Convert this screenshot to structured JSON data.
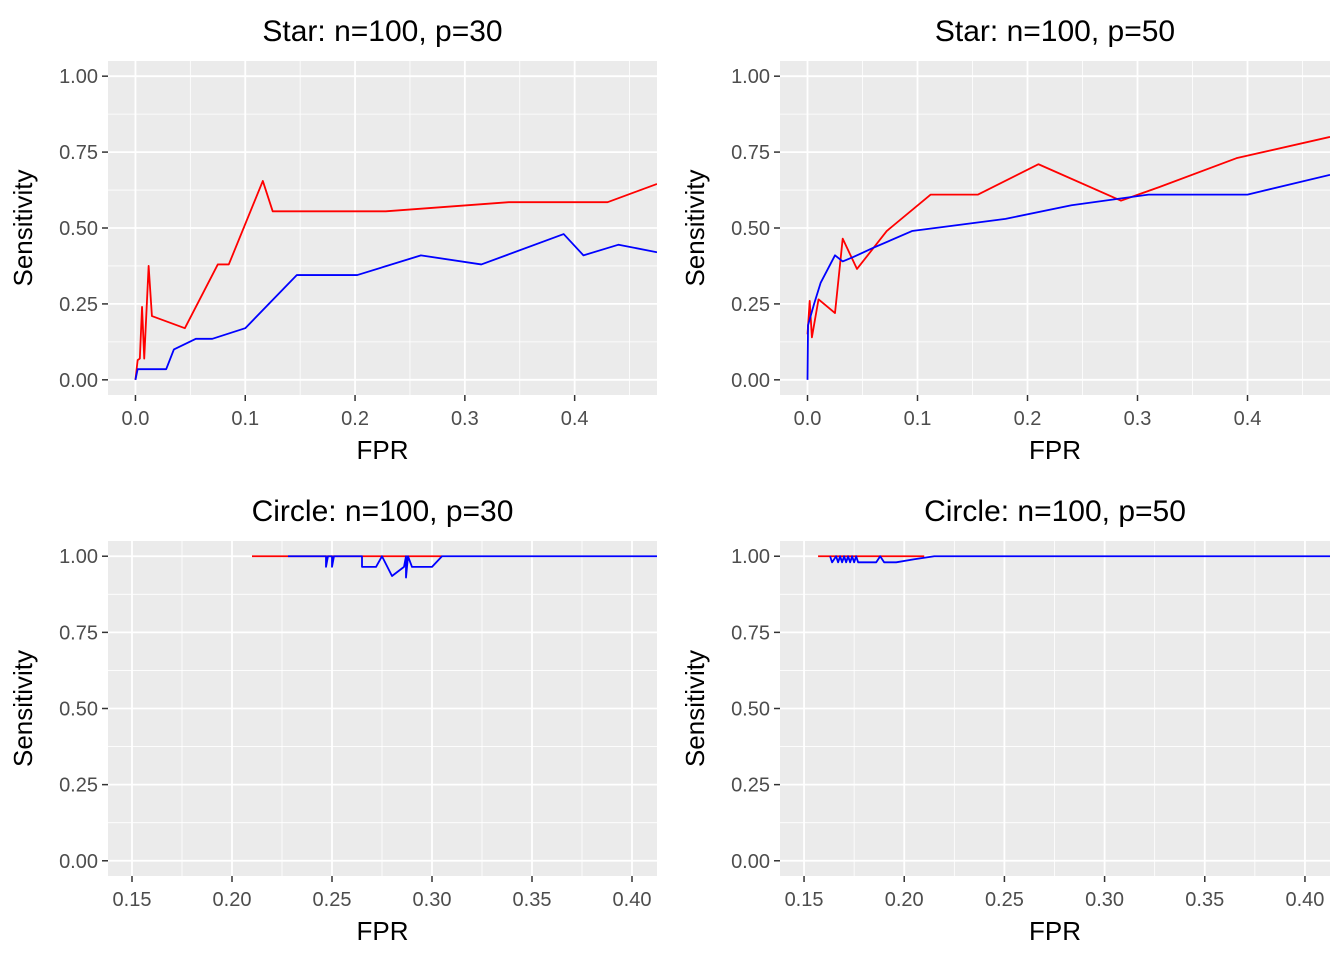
{
  "chart_data": [
    {
      "type": "line",
      "title": "Star: n=100, p=30",
      "xlabel": "FPR",
      "ylabel": "Sensitivity",
      "xlim": [
        -0.025,
        0.475
      ],
      "ylim": [
        -0.05,
        1.05
      ],
      "x_ticks": [
        0.0,
        0.1,
        0.2,
        0.3,
        0.4
      ],
      "x_tick_labels": [
        "0.0",
        "0.1",
        "0.2",
        "0.3",
        "0.4"
      ],
      "y_ticks": [
        0.0,
        0.25,
        0.5,
        0.75,
        1.0
      ],
      "y_tick_labels": [
        "0.00",
        "0.25",
        "0.50",
        "0.75",
        "1.00"
      ],
      "grid": true,
      "series": [
        {
          "color": "#ff0000",
          "points": [
            [
              0.0,
              0.0
            ],
            [
              0.002,
              0.065
            ],
            [
              0.004,
              0.07
            ],
            [
              0.006,
              0.24
            ],
            [
              0.008,
              0.07
            ],
            [
              0.012,
              0.375
            ],
            [
              0.015,
              0.21
            ],
            [
              0.045,
              0.17
            ],
            [
              0.075,
              0.38
            ],
            [
              0.085,
              0.38
            ],
            [
              0.116,
              0.655
            ],
            [
              0.125,
              0.555
            ],
            [
              0.228,
              0.555
            ],
            [
              0.34,
              0.585
            ],
            [
              0.43,
              0.585
            ],
            [
              0.475,
              0.645
            ]
          ]
        },
        {
          "color": "#0000ff",
          "points": [
            [
              0.0,
              0.0
            ],
            [
              0.002,
              0.035
            ],
            [
              0.028,
              0.035
            ],
            [
              0.035,
              0.1
            ],
            [
              0.055,
              0.135
            ],
            [
              0.07,
              0.135
            ],
            [
              0.1,
              0.17
            ],
            [
              0.147,
              0.345
            ],
            [
              0.202,
              0.345
            ],
            [
              0.26,
              0.41
            ],
            [
              0.315,
              0.38
            ],
            [
              0.39,
              0.48
            ],
            [
              0.408,
              0.41
            ],
            [
              0.44,
              0.445
            ],
            [
              0.475,
              0.42
            ]
          ]
        }
      ]
    },
    {
      "type": "line",
      "title": "Star: n=100, p=50",
      "xlabel": "FPR",
      "ylabel": "Sensitivity",
      "xlim": [
        -0.025,
        0.475
      ],
      "ylim": [
        -0.05,
        1.05
      ],
      "x_ticks": [
        0.0,
        0.1,
        0.2,
        0.3,
        0.4
      ],
      "x_tick_labels": [
        "0.0",
        "0.1",
        "0.2",
        "0.3",
        "0.4"
      ],
      "y_ticks": [
        0.0,
        0.25,
        0.5,
        0.75,
        1.0
      ],
      "y_tick_labels": [
        "0.00",
        "0.25",
        "0.50",
        "0.75",
        "1.00"
      ],
      "grid": true,
      "series": [
        {
          "color": "#ff0000",
          "points": [
            [
              0.0,
              0.15
            ],
            [
              0.002,
              0.26
            ],
            [
              0.004,
              0.14
            ],
            [
              0.01,
              0.265
            ],
            [
              0.025,
              0.22
            ],
            [
              0.032,
              0.465
            ],
            [
              0.045,
              0.365
            ],
            [
              0.072,
              0.49
            ],
            [
              0.112,
              0.61
            ],
            [
              0.155,
              0.61
            ],
            [
              0.21,
              0.71
            ],
            [
              0.285,
              0.59
            ],
            [
              0.32,
              0.635
            ],
            [
              0.39,
              0.73
            ],
            [
              0.475,
              0.8
            ]
          ]
        },
        {
          "color": "#0000ff",
          "points": [
            [
              0.0,
              0.0
            ],
            [
              0.0005,
              0.18
            ],
            [
              0.006,
              0.25
            ],
            [
              0.012,
              0.32
            ],
            [
              0.025,
              0.41
            ],
            [
              0.032,
              0.39
            ],
            [
              0.042,
              0.405
            ],
            [
              0.06,
              0.435
            ],
            [
              0.095,
              0.49
            ],
            [
              0.18,
              0.53
            ],
            [
              0.24,
              0.575
            ],
            [
              0.31,
              0.61
            ],
            [
              0.4,
              0.61
            ],
            [
              0.475,
              0.675
            ]
          ]
        }
      ]
    },
    {
      "type": "line",
      "title": "Circle: n=100, p=30",
      "xlabel": "FPR",
      "ylabel": "Sensitivity",
      "xlim": [
        0.138,
        0.4125
      ],
      "ylim": [
        -0.05,
        1.05
      ],
      "x_ticks": [
        0.15,
        0.2,
        0.25,
        0.3,
        0.35,
        0.4
      ],
      "x_tick_labels": [
        "0.15",
        "0.20",
        "0.25",
        "0.30",
        "0.35",
        "0.40"
      ],
      "y_ticks": [
        0.0,
        0.25,
        0.5,
        0.75,
        1.0
      ],
      "y_tick_labels": [
        "0.00",
        "0.25",
        "0.50",
        "0.75",
        "1.00"
      ],
      "grid": true,
      "series": [
        {
          "color": "#ff0000",
          "points": [
            [
              0.21,
              1.0
            ],
            [
              0.305,
              1.0
            ]
          ]
        },
        {
          "color": "#0000ff",
          "points": [
            [
              0.228,
              1.0
            ],
            [
              0.247,
              1.0
            ],
            [
              0.247,
              0.965
            ],
            [
              0.248,
              1.0
            ],
            [
              0.25,
              1.0
            ],
            [
              0.25,
              0.965
            ],
            [
              0.251,
              1.0
            ],
            [
              0.265,
              1.0
            ],
            [
              0.265,
              0.965
            ],
            [
              0.272,
              0.965
            ],
            [
              0.275,
              1.0
            ],
            [
              0.28,
              0.935
            ],
            [
              0.286,
              0.965
            ],
            [
              0.287,
              1.0
            ],
            [
              0.287,
              0.93
            ],
            [
              0.288,
              1.0
            ],
            [
              0.29,
              0.965
            ],
            [
              0.3,
              0.965
            ],
            [
              0.305,
              1.0
            ],
            [
              0.4125,
              1.0
            ]
          ]
        }
      ]
    },
    {
      "type": "line",
      "title": "Circle: n=100, p=50",
      "xlabel": "FPR",
      "ylabel": "Sensitivity",
      "xlim": [
        0.138,
        0.4125
      ],
      "ylim": [
        -0.05,
        1.05
      ],
      "x_ticks": [
        0.15,
        0.2,
        0.25,
        0.3,
        0.35,
        0.4
      ],
      "x_tick_labels": [
        "0.15",
        "0.20",
        "0.25",
        "0.30",
        "0.35",
        "0.40"
      ],
      "y_ticks": [
        0.0,
        0.25,
        0.5,
        0.75,
        1.0
      ],
      "y_tick_labels": [
        "0.00",
        "0.25",
        "0.50",
        "0.75",
        "1.00"
      ],
      "grid": true,
      "series": [
        {
          "color": "#ff0000",
          "points": [
            [
              0.157,
              1.0
            ],
            [
              0.21,
              1.0
            ]
          ]
        },
        {
          "color": "#0000ff",
          "points": [
            [
              0.163,
              1.0
            ],
            [
              0.164,
              0.98
            ],
            [
              0.166,
              1.0
            ],
            [
              0.167,
              0.98
            ],
            [
              0.168,
              1.0
            ],
            [
              0.169,
              0.98
            ],
            [
              0.17,
              1.0
            ],
            [
              0.171,
              0.98
            ],
            [
              0.172,
              1.0
            ],
            [
              0.173,
              0.98
            ],
            [
              0.174,
              1.0
            ],
            [
              0.175,
              0.98
            ],
            [
              0.176,
              1.0
            ],
            [
              0.177,
              0.98
            ],
            [
              0.186,
              0.98
            ],
            [
              0.188,
              1.0
            ],
            [
              0.19,
              0.98
            ],
            [
              0.196,
              0.98
            ],
            [
              0.205,
              0.99
            ],
            [
              0.215,
              1.0
            ],
            [
              0.4125,
              1.0
            ]
          ]
        }
      ]
    }
  ]
}
